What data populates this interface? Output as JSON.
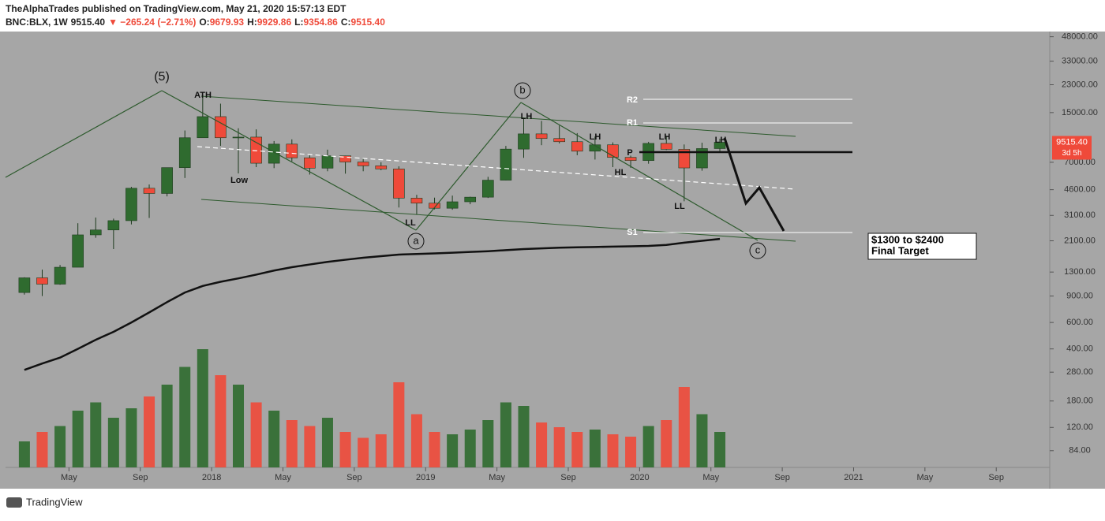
{
  "header": {
    "line1": "TheAlphaTrades published on TradingView.com, May 21, 2020 15:57:13 EDT",
    "symbol": "BNC:BLX, 1W",
    "last": "9515.40",
    "change": "▼ −265.24 (−2.71%)",
    "o_label": "O:",
    "o": "9679.93",
    "h_label": "H:",
    "h": "9929.86",
    "l_label": "L:",
    "l": "9354.86",
    "c_label": "C:",
    "c": "9515.40"
  },
  "footer": {
    "brand": "TradingView"
  },
  "chart_data": {
    "type": "candlestick",
    "log_scale": true,
    "x": [
      "2017-02",
      "2017-03",
      "2017-04",
      "2017-05",
      "2017-06",
      "2017-07",
      "2017-08",
      "2017-09",
      "2017-10",
      "2017-11",
      "2017-12",
      "2018-01",
      "2018-02",
      "2018-03",
      "2018-04",
      "2018-05",
      "2018-06",
      "2018-07",
      "2018-08",
      "2018-09",
      "2018-10",
      "2018-11",
      "2018-12",
      "2019-01",
      "2019-02",
      "2019-03",
      "2019-04",
      "2019-05",
      "2019-06",
      "2019-07",
      "2019-08",
      "2019-09",
      "2019-10",
      "2019-11",
      "2019-12",
      "2020-01",
      "2020-02",
      "2020-03",
      "2020-04",
      "2020-05"
    ],
    "open": [
      950,
      1190,
      1080,
      1400,
      2300,
      2480,
      2860,
      4700,
      4340,
      6450,
      10200,
      14100,
      10200,
      10300,
      6900,
      9250,
      7500,
      6400,
      7730,
      7030,
      6630,
      6320,
      4040,
      3740,
      3460,
      3820,
      4100,
      5320,
      8570,
      10820,
      10080,
      9600,
      8300,
      9150,
      7550,
      7190,
      9350,
      8540,
      6420,
      8640
    ],
    "high": [
      1200,
      1350,
      1450,
      2750,
      3000,
      2950,
      4800,
      4980,
      6450,
      11400,
      19800,
      17200,
      11800,
      11600,
      9700,
      9950,
      7800,
      8500,
      7750,
      7400,
      7000,
      6580,
      4250,
      4070,
      4200,
      4130,
      5600,
      9000,
      13900,
      13200,
      12300,
      10950,
      10400,
      9500,
      7750,
      9580,
      10500,
      9200,
      9450,
      10050
    ],
    "low": [
      920,
      900,
      1070,
      1400,
      2200,
      1850,
      2700,
      2980,
      4150,
      5500,
      10200,
      9000,
      5900,
      6500,
      6400,
      7100,
      5800,
      6100,
      5880,
      6100,
      6200,
      3500,
      3150,
      3400,
      3380,
      3680,
      4050,
      5300,
      7500,
      9100,
      9350,
      7800,
      7300,
      6500,
      6430,
      6850,
      8450,
      3850,
      6150,
      8100
    ],
    "close": [
      1190,
      1080,
      1400,
      2300,
      2480,
      2860,
      4700,
      4340,
      6450,
      10200,
      14100,
      10200,
      10300,
      6900,
      9250,
      7500,
      6400,
      7730,
      7030,
      6630,
      6320,
      4040,
      3740,
      3460,
      3820,
      4100,
      5320,
      8570,
      10820,
      10080,
      9600,
      8300,
      9150,
      7550,
      7190,
      9350,
      8540,
      6420,
      8640,
      9515.4
    ],
    "volume": [
      22,
      30,
      35,
      48,
      55,
      42,
      50,
      60,
      70,
      85,
      100,
      78,
      70,
      55,
      48,
      40,
      35,
      42,
      30,
      25,
      28,
      72,
      45,
      30,
      28,
      32,
      40,
      55,
      52,
      38,
      34,
      30,
      32,
      28,
      26,
      35,
      40,
      68,
      45,
      30
    ],
    "volume_ylim": [
      0,
      100
    ],
    "ma": [
      290,
      320,
      350,
      400,
      460,
      520,
      600,
      700,
      820,
      950,
      1050,
      1120,
      1180,
      1250,
      1330,
      1400,
      1460,
      1520,
      1570,
      1620,
      1660,
      1700,
      1715,
      1730,
      1750,
      1770,
      1790,
      1820,
      1850,
      1870,
      1890,
      1900,
      1910,
      1920,
      1930,
      1940,
      1970,
      2040,
      2100,
      2160
    ],
    "up_color": "#2f6b2f",
    "down_color": "#ef4a3a",
    "ma_color": "#111111",
    "ylim": [
      65,
      52000
    ],
    "yticks": [
      {
        "value": 48000,
        "label": "48000.00"
      },
      {
        "value": 33000,
        "label": "33000.00"
      },
      {
        "value": 23000,
        "label": "23000.00"
      },
      {
        "value": 15000,
        "label": "15000.00"
      },
      {
        "value": 7000,
        "label": "7000.00"
      },
      {
        "value": 4600,
        "label": "4600.00"
      },
      {
        "value": 3100,
        "label": "3100.00"
      },
      {
        "value": 2100,
        "label": "2100.00"
      },
      {
        "value": 1300,
        "label": "1300.00"
      },
      {
        "value": 900,
        "label": "900.00"
      },
      {
        "value": 600,
        "label": "600.00"
      },
      {
        "value": 400,
        "label": "400.00"
      },
      {
        "value": 280,
        "label": "280.00"
      },
      {
        "value": 180,
        "label": "180.00"
      },
      {
        "value": 120,
        "label": "120.00"
      },
      {
        "value": 84,
        "label": "84.00"
      }
    ],
    "xlim": [
      "2017-01",
      "2021-12"
    ],
    "xticks": [
      {
        "value": "2017-05",
        "label": "May"
      },
      {
        "value": "2017-09",
        "label": "Sep"
      },
      {
        "value": "2018-01",
        "label": "2018"
      },
      {
        "value": "2018-05",
        "label": "May"
      },
      {
        "value": "2018-09",
        "label": "Sep"
      },
      {
        "value": "2019-01",
        "label": "2019"
      },
      {
        "value": "2019-05",
        "label": "May"
      },
      {
        "value": "2019-09",
        "label": "Sep"
      },
      {
        "value": "2020-01",
        "label": "2020"
      },
      {
        "value": "2020-05",
        "label": "May"
      },
      {
        "value": "2020-09",
        "label": "Sep"
      },
      {
        "value": "2021-01",
        "label": "2021"
      },
      {
        "value": "2021-05",
        "label": "May"
      },
      {
        "value": "2021-09",
        "label": "Sep"
      }
    ],
    "price_label": "9515.40",
    "countdown": "3d 5h",
    "annotations": [
      "(5)",
      "ATH",
      "Low",
      "LL",
      "a",
      "LH",
      "b",
      "LH",
      "HL",
      "P",
      "R2",
      "R1",
      "S1",
      "LH",
      "LL",
      "LH",
      "c"
    ],
    "target": [
      "$1300 to $2400",
      "Final Target"
    ]
  }
}
